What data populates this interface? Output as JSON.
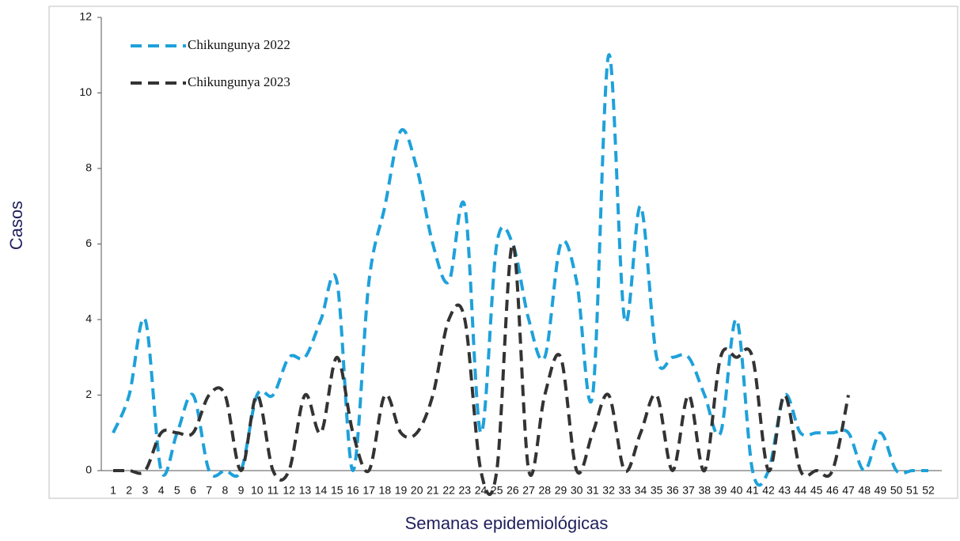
{
  "chart_data": {
    "type": "line",
    "x_label": "Semanas epidemiológicas",
    "y_label": "Casos",
    "categories": [
      "1",
      "2",
      "3",
      "4",
      "5",
      "6",
      "7",
      "8",
      "9",
      "10",
      "11",
      "12",
      "13",
      "14",
      "15",
      "16",
      "17",
      "18",
      "19",
      "20",
      "21",
      "22",
      "23",
      "24",
      "25",
      "26",
      "27",
      "28",
      "29",
      "30",
      "31",
      "32",
      "33",
      "34",
      "35",
      "36",
      "37",
      "38",
      "39",
      "40",
      "41",
      "42",
      "43",
      "44",
      "45",
      "46",
      "47",
      "48",
      "49",
      "50",
      "51",
      "52"
    ],
    "series": [
      {
        "name": "Chikungunya 2022",
        "color": "#1ea1da",
        "values": [
          1,
          2,
          4,
          0,
          1,
          2,
          0,
          0,
          0,
          2,
          2,
          3,
          3,
          4,
          5,
          0,
          5,
          7,
          9,
          8,
          6,
          5,
          7,
          1,
          6,
          6,
          4,
          3,
          6,
          5,
          2,
          11,
          4,
          7,
          3,
          3,
          3,
          2,
          1,
          4,
          0,
          0,
          2,
          1,
          1,
          1,
          1,
          0,
          1,
          0,
          0,
          0
        ]
      },
      {
        "name": "Chikungunya 2023",
        "color": "#333333",
        "values": [
          0,
          0,
          0,
          1,
          1,
          1,
          2,
          2,
          0,
          2,
          0,
          0,
          2,
          1,
          3,
          1,
          0,
          2,
          1,
          1,
          2,
          4,
          4,
          0,
          0,
          6,
          0,
          2,
          3,
          0,
          1,
          2,
          0,
          1,
          2,
          0,
          2,
          0,
          3,
          3,
          3,
          0,
          2,
          0,
          0,
          0,
          2,
          null,
          null,
          null,
          null,
          null
        ]
      }
    ],
    "ylim": [
      0,
      12
    ],
    "yticks": [
      0,
      2,
      4,
      6,
      8,
      10,
      12
    ],
    "legend": "upper-left"
  }
}
